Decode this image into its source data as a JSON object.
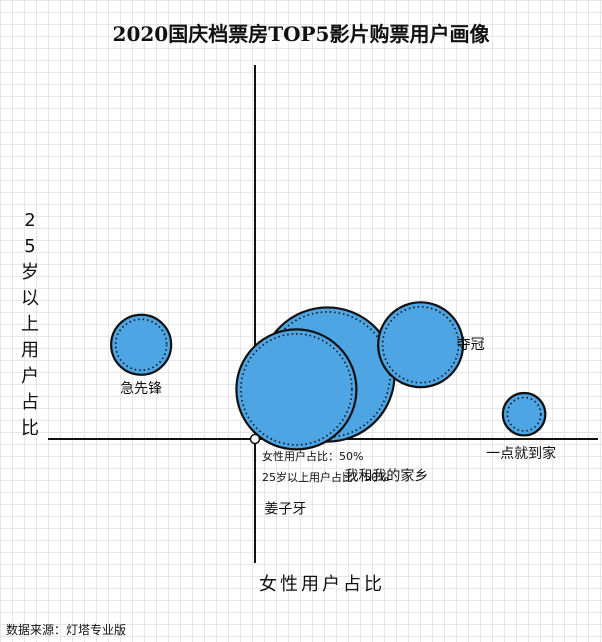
{
  "title": "2020国庆档票房TOP5影片购票用户画像",
  "source": "数据来源：灯塔专业版",
  "chart_data": {
    "type": "scatter",
    "title": "2020国庆档票房TOP5影片购票用户画像",
    "xlabel": "女性用户占比",
    "ylabel": "25岁以上用户占比",
    "center": {
      "x": 50,
      "y": 50
    },
    "center_notes": [
      "女性用户占比：50%",
      "25岁以上用户占比：50%"
    ],
    "xlim": [
      40,
      75
    ],
    "ylim": [
      25,
      75
    ],
    "grid": true,
    "bubble_color": "#4ea5e4",
    "points": [
      {
        "name": "急先锋",
        "x": 44.5,
        "y": 69,
        "size": 1
      },
      {
        "name": "夺冠",
        "x": 58,
        "y": 69,
        "size": 2
      },
      {
        "name": "我和我的家乡",
        "x": 53.5,
        "y": 63,
        "size": 5
      },
      {
        "name": "姜子牙",
        "x": 52,
        "y": 60,
        "size": 4
      },
      {
        "name": "一点就到家",
        "x": 63,
        "y": 55,
        "size": 0.5
      }
    ]
  }
}
